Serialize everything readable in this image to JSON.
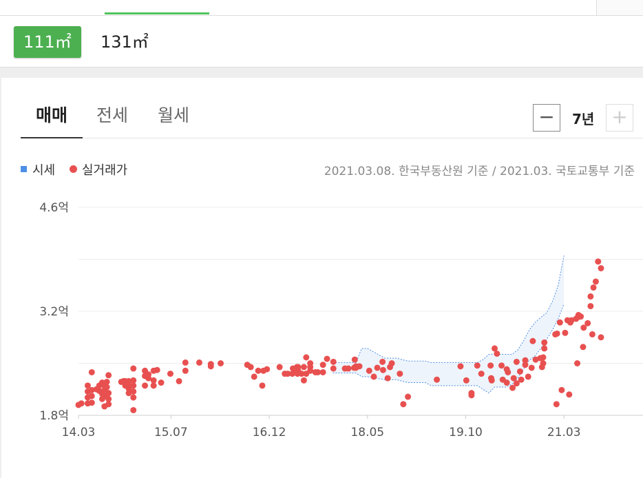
{
  "area_options": [
    {
      "label": "111㎡",
      "selected": true
    },
    {
      "label": "131㎡",
      "selected": false
    }
  ],
  "trade_tabs": [
    {
      "label": "매매",
      "selected": true
    },
    {
      "label": "전세",
      "selected": false
    },
    {
      "label": "월세",
      "selected": false
    }
  ],
  "period": {
    "label": "7년",
    "minus": "−",
    "plus": "+"
  },
  "legend": {
    "market_price": "시세",
    "actual_trade": "실거래가"
  },
  "source_note": "2021.03.08. 한국부동산원 기준 / 2021.03. 국토교통부 기준",
  "colors": {
    "accent": "#4caf50",
    "trade_dot": "#e85050",
    "market_band": "#4d8fe6",
    "market_fill": "#eef4fc"
  },
  "chart_data": {
    "type": "scatter",
    "ylim": [
      1.8,
      4.6
    ],
    "y_ticks": [
      {
        "value": 1.8,
        "label": "1.8억"
      },
      {
        "value": 3.2,
        "label": "3.2억"
      },
      {
        "value": 4.6,
        "label": "4.6억"
      }
    ],
    "y_gridlines": [
      1.8,
      2.5,
      3.2,
      3.9,
      4.6
    ],
    "x_ticks": [
      {
        "value": 0,
        "label": "14.03"
      },
      {
        "value": 16,
        "label": "15.07"
      },
      {
        "value": 33,
        "label": "16.12"
      },
      {
        "value": 50,
        "label": "18.05"
      },
      {
        "value": 67,
        "label": "19.10"
      },
      {
        "value": 84,
        "label": "21.03"
      }
    ],
    "x_unit": "months since 2014.03",
    "series": [
      {
        "name": "시세",
        "type": "band",
        "x": [
          44,
          48,
          49,
          50,
          53,
          55,
          57,
          60,
          61,
          62,
          63,
          64,
          66,
          67,
          68,
          69,
          70,
          71,
          72,
          73,
          74,
          75,
          76,
          77,
          78,
          79,
          80,
          81,
          82,
          83,
          84
        ],
        "upper": [
          2.51,
          2.51,
          2.7,
          2.7,
          2.57,
          2.57,
          2.53,
          2.53,
          2.51,
          2.51,
          2.51,
          2.51,
          2.51,
          2.51,
          2.51,
          2.51,
          2.55,
          2.62,
          2.62,
          2.62,
          2.62,
          2.62,
          2.68,
          2.8,
          2.95,
          3.05,
          3.12,
          3.18,
          3.33,
          3.55,
          3.95
        ],
        "lower": [
          2.37,
          2.37,
          2.32,
          2.32,
          2.28,
          2.28,
          2.24,
          2.24,
          2.2,
          2.2,
          2.2,
          2.2,
          2.2,
          2.2,
          2.2,
          2.2,
          2.15,
          2.1,
          2.18,
          2.18,
          2.18,
          2.22,
          2.3,
          2.42,
          2.54,
          2.6,
          2.7,
          2.82,
          2.95,
          3.1,
          3.3
        ]
      },
      {
        "name": "실거래가",
        "type": "points",
        "points": [
          [
            0.0,
            1.94
          ],
          [
            0.5,
            1.96
          ],
          [
            1.6,
            1.96
          ],
          [
            1.6,
            2.04
          ],
          [
            1.6,
            2.12
          ],
          [
            1.6,
            2.2
          ],
          [
            2.3,
            2.38
          ],
          [
            2.3,
            2.14
          ],
          [
            2.3,
            2.06
          ],
          [
            2.3,
            1.97
          ],
          [
            3.1,
            2.15
          ],
          [
            3.6,
            2.2
          ],
          [
            3.6,
            2.13
          ],
          [
            4.1,
            2.24
          ],
          [
            4.1,
            2.09
          ],
          [
            4.1,
            2.02
          ],
          [
            4.5,
            2.2
          ],
          [
            4.5,
            2.14
          ],
          [
            4.5,
            2.06
          ],
          [
            4.5,
            1.92
          ],
          [
            4.9,
            2.25
          ],
          [
            4.9,
            2.18
          ],
          [
            5.2,
            2.34
          ],
          [
            5.2,
            2.1
          ],
          [
            5.2,
            2.02
          ],
          [
            5.2,
            1.95
          ],
          [
            7.4,
            2.25
          ],
          [
            7.8,
            2.26
          ],
          [
            8.1,
            2.2
          ],
          [
            8.1,
            2.26
          ],
          [
            8.7,
            2.26
          ],
          [
            8.7,
            2.16
          ],
          [
            8.7,
            2.1
          ],
          [
            8.7,
            2.21
          ],
          [
            9.5,
            2.43
          ],
          [
            9.5,
            2.27
          ],
          [
            9.5,
            2.2
          ],
          [
            9.5,
            2.12
          ],
          [
            9.5,
            2.04
          ],
          [
            9.5,
            1.87
          ],
          [
            11.5,
            2.2
          ],
          [
            11.5,
            2.33
          ],
          [
            11.5,
            2.4
          ],
          [
            12.1,
            2.35
          ],
          [
            12.1,
            2.3
          ],
          [
            13.0,
            2.4
          ],
          [
            13.0,
            2.2
          ],
          [
            13.0,
            2.27
          ],
          [
            13.6,
            2.41
          ],
          [
            14.3,
            2.24
          ],
          [
            15.9,
            2.36
          ],
          [
            17.4,
            2.26
          ],
          [
            18.5,
            2.51
          ],
          [
            18.5,
            2.4
          ],
          [
            20.9,
            2.51
          ],
          [
            22.9,
            2.49
          ],
          [
            22.9,
            2.46
          ],
          [
            24.6,
            2.5
          ],
          [
            29.2,
            2.48
          ],
          [
            29.8,
            2.45
          ],
          [
            30.4,
            2.32
          ],
          [
            31.1,
            2.4
          ],
          [
            31.8,
            2.2
          ],
          [
            32.0,
            2.4
          ],
          [
            32.6,
            2.42
          ],
          [
            34.8,
            2.45
          ],
          [
            35.7,
            2.36
          ],
          [
            36.2,
            2.36
          ],
          [
            37.0,
            2.36
          ],
          [
            37.1,
            2.43
          ],
          [
            37.4,
            2.4
          ],
          [
            37.8,
            2.45
          ],
          [
            37.9,
            2.36
          ],
          [
            38.0,
            2.45
          ],
          [
            38.0,
            2.4
          ],
          [
            38.6,
            2.36
          ],
          [
            39.0,
            2.27
          ],
          [
            39.0,
            2.45
          ],
          [
            39.4,
            2.36
          ],
          [
            39.4,
            2.58
          ],
          [
            40.1,
            2.4
          ],
          [
            40.1,
            2.45
          ],
          [
            40.1,
            2.5
          ],
          [
            41.0,
            2.38
          ],
          [
            41.4,
            2.38
          ],
          [
            42.3,
            2.38
          ],
          [
            42.3,
            2.48
          ],
          [
            43.0,
            2.56
          ],
          [
            44.1,
            2.43
          ],
          [
            44.1,
            2.52
          ],
          [
            46.1,
            2.43
          ],
          [
            46.7,
            2.43
          ],
          [
            47.7,
            2.44
          ],
          [
            47.8,
            2.55
          ],
          [
            48.0,
            2.44
          ],
          [
            48.0,
            2.46
          ],
          [
            48.6,
            2.46
          ],
          [
            50.3,
            2.4
          ],
          [
            51.1,
            2.32
          ],
          [
            51.7,
            2.44
          ],
          [
            52.6,
            2.52
          ],
          [
            52.7,
            2.41
          ],
          [
            53.5,
            2.3
          ],
          [
            53.9,
            2.45
          ],
          [
            54.2,
            2.5
          ],
          [
            55.6,
            2.36
          ],
          [
            56.2,
            1.95
          ],
          [
            57.0,
            2.05
          ],
          [
            62.0,
            2.28
          ],
          [
            66.1,
            2.46
          ],
          [
            67.1,
            2.27
          ],
          [
            68.0,
            2.1
          ],
          [
            68.0,
            2.07
          ],
          [
            69.0,
            2.47
          ],
          [
            69.7,
            2.36
          ],
          [
            71.3,
            2.47
          ],
          [
            71.4,
            2.3
          ],
          [
            71.5,
            2.27
          ],
          [
            72.0,
            2.7
          ],
          [
            72.4,
            2.63
          ],
          [
            73.2,
            2.47
          ],
          [
            73.4,
            2.28
          ],
          [
            74.1,
            2.42
          ],
          [
            74.1,
            2.24
          ],
          [
            74.3,
            2.38
          ],
          [
            75.1,
            2.17
          ],
          [
            75.3,
            2.3
          ],
          [
            75.8,
            2.52
          ],
          [
            75.8,
            2.23
          ],
          [
            76.4,
            2.39
          ],
          [
            76.6,
            2.28
          ],
          [
            77.3,
            2.54
          ],
          [
            77.3,
            2.48
          ],
          [
            77.8,
            2.32
          ],
          [
            78.4,
            2.44
          ],
          [
            78.6,
            2.8
          ],
          [
            79.1,
            2.55
          ],
          [
            79.9,
            2.57
          ],
          [
            80.2,
            2.45
          ],
          [
            80.4,
            2.5
          ],
          [
            80.4,
            2.58
          ],
          [
            80.6,
            2.7
          ],
          [
            80.6,
            2.78
          ],
          [
            82.5,
            2.89
          ],
          [
            82.8,
            2.9
          ],
          [
            83.3,
            3.05
          ],
          [
            84.2,
            2.91
          ],
          [
            84.6,
            3.08
          ],
          [
            85.1,
            3.05
          ],
          [
            85.3,
            3.08
          ],
          [
            86.1,
            3.1
          ],
          [
            86.4,
            3.12
          ],
          [
            86.5,
            3.15
          ],
          [
            86.9,
            3.13
          ],
          [
            87.4,
            2.98
          ],
          [
            87.3,
            2.72
          ],
          [
            88.1,
            3.04
          ],
          [
            88.6,
            3.27
          ],
          [
            88.6,
            3.4
          ],
          [
            89.1,
            3.52
          ],
          [
            89.5,
            3.6
          ],
          [
            89.9,
            3.87
          ],
          [
            90.4,
            3.78
          ],
          [
            90.4,
            2.85
          ],
          [
            88.9,
            2.89
          ],
          [
            86.3,
            2.5
          ],
          [
            84.9,
            2.08
          ],
          [
            83.6,
            2.14
          ],
          [
            82.7,
            1.95
          ]
        ]
      }
    ]
  }
}
